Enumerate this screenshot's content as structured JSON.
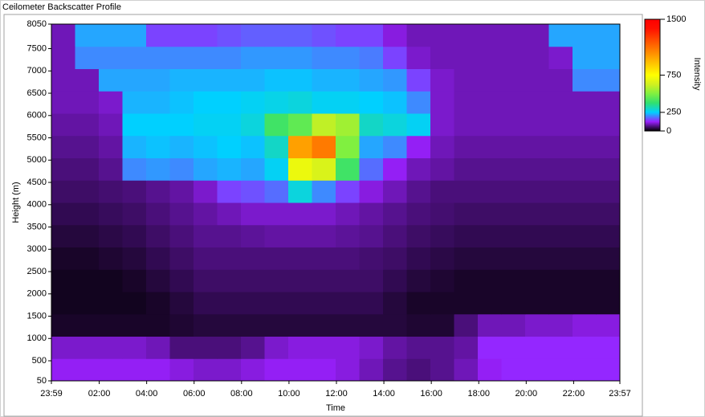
{
  "chart_data": {
    "type": "heatmap",
    "title": "Ceilometer Backscatter Profile",
    "x_label": "Time",
    "y_label": "Height (m)",
    "colorbar_label": "Intensity",
    "xlim": [
      0,
      1438
    ],
    "xticks": [
      {
        "value": 0,
        "label": "23:59"
      },
      {
        "value": 121,
        "label": "02:00"
      },
      {
        "value": 241,
        "label": "04:00"
      },
      {
        "value": 361,
        "label": "06:00"
      },
      {
        "value": 481,
        "label": "08:00"
      },
      {
        "value": 601,
        "label": "10:00"
      },
      {
        "value": 721,
        "label": "12:00"
      },
      {
        "value": 841,
        "label": "14:00"
      },
      {
        "value": 961,
        "label": "16:00"
      },
      {
        "value": 1081,
        "label": "18:00"
      },
      {
        "value": 1201,
        "label": "20:00"
      },
      {
        "value": 1321,
        "label": "22:00"
      },
      {
        "value": 1438,
        "label": "23:57"
      }
    ],
    "ylim": [
      50,
      8050
    ],
    "yticks": [
      50,
      500,
      1000,
      1500,
      2000,
      2500,
      3000,
      3500,
      4000,
      4500,
      5000,
      5500,
      6000,
      6500,
      7000,
      7500,
      8050
    ],
    "clim": [
      0,
      1500
    ],
    "cticks": [
      0,
      250,
      750,
      1500
    ],
    "colors": [
      "#000000",
      "#9a20ff",
      "#00d0ff",
      "#30e070",
      "#80f040",
      "#d0f020",
      "#ffff00",
      "#ffd000",
      "#ffa000",
      "#ff7000",
      "#ff4000",
      "#ff1000",
      "#ff0000"
    ],
    "z": [
      [
        120,
        120,
        120,
        120,
        120,
        110,
        100,
        100,
        110,
        120,
        120,
        120,
        110,
        90,
        70,
        60,
        70,
        90,
        120,
        130,
        130,
        130,
        130,
        130
      ],
      [
        100,
        100,
        100,
        100,
        90,
        60,
        60,
        60,
        70,
        100,
        110,
        110,
        110,
        100,
        80,
        70,
        70,
        80,
        130,
        130,
        130,
        130,
        130,
        130
      ],
      [
        20,
        20,
        20,
        20,
        20,
        25,
        30,
        30,
        30,
        30,
        30,
        30,
        30,
        30,
        30,
        25,
        25,
        60,
        90,
        90,
        100,
        100,
        110,
        110
      ],
      [
        15,
        15,
        15,
        15,
        20,
        30,
        40,
        40,
        40,
        40,
        40,
        40,
        40,
        40,
        30,
        20,
        20,
        20,
        20,
        20,
        20,
        20,
        20,
        20
      ],
      [
        15,
        15,
        15,
        20,
        30,
        40,
        50,
        50,
        50,
        50,
        50,
        50,
        50,
        50,
        40,
        30,
        25,
        20,
        20,
        20,
        20,
        20,
        20,
        20
      ],
      [
        20,
        20,
        25,
        30,
        40,
        50,
        60,
        60,
        60,
        60,
        60,
        60,
        60,
        55,
        50,
        40,
        35,
        30,
        30,
        30,
        30,
        30,
        30,
        30
      ],
      [
        30,
        30,
        35,
        40,
        50,
        60,
        70,
        70,
        75,
        80,
        80,
        80,
        75,
        70,
        60,
        50,
        45,
        40,
        40,
        40,
        40,
        40,
        40,
        40
      ],
      [
        40,
        40,
        45,
        50,
        60,
        70,
        80,
        90,
        100,
        100,
        100,
        100,
        90,
        80,
        70,
        60,
        55,
        50,
        50,
        50,
        50,
        50,
        50,
        50
      ],
      [
        50,
        50,
        55,
        60,
        70,
        80,
        100,
        150,
        160,
        180,
        280,
        200,
        150,
        110,
        90,
        70,
        60,
        60,
        60,
        60,
        60,
        60,
        60,
        60
      ],
      [
        60,
        60,
        70,
        200,
        210,
        200,
        220,
        230,
        220,
        260,
        700,
        650,
        400,
        180,
        120,
        90,
        80,
        70,
        70,
        70,
        70,
        70,
        70,
        70
      ],
      [
        70,
        70,
        80,
        230,
        240,
        230,
        240,
        250,
        240,
        300,
        1000,
        1100,
        500,
        220,
        200,
        120,
        90,
        80,
        80,
        80,
        80,
        80,
        80,
        80
      ],
      [
        80,
        80,
        90,
        250,
        250,
        250,
        260,
        260,
        280,
        400,
        450,
        600,
        550,
        300,
        280,
        260,
        100,
        90,
        90,
        90,
        90,
        90,
        90,
        90
      ],
      [
        90,
        90,
        100,
        230,
        230,
        240,
        250,
        250,
        260,
        270,
        280,
        260,
        260,
        250,
        240,
        200,
        100,
        90,
        90,
        90,
        90,
        90,
        90,
        90
      ],
      [
        90,
        90,
        220,
        220,
        220,
        230,
        230,
        230,
        230,
        240,
        240,
        230,
        230,
        220,
        210,
        150,
        100,
        90,
        90,
        90,
        90,
        90,
        200,
        200
      ],
      [
        90,
        200,
        200,
        200,
        200,
        200,
        200,
        200,
        210,
        210,
        210,
        200,
        200,
        190,
        150,
        100,
        90,
        90,
        90,
        90,
        90,
        100,
        220,
        220
      ],
      [
        90,
        220,
        220,
        220,
        150,
        150,
        150,
        160,
        170,
        170,
        170,
        160,
        150,
        150,
        110,
        90,
        90,
        90,
        90,
        90,
        90,
        220,
        220,
        220
      ]
    ]
  }
}
